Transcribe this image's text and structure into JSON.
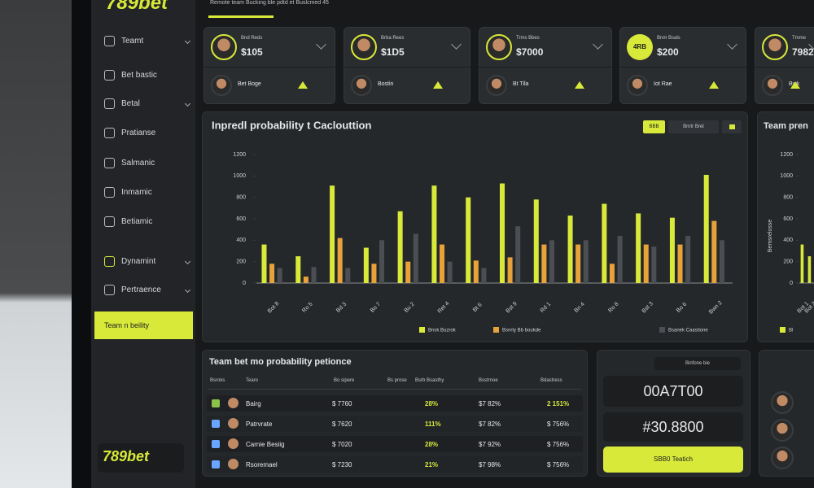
{
  "brand": "789bet",
  "breadcrumb": "Remote team Bucking ble pdtd et Buslcmed 45",
  "sidebar": {
    "items": [
      "Teamt",
      "Bet bastic",
      "Betal",
      "Pratianse",
      "Salmanic",
      "Inmamic",
      "Betiamic",
      "Dynamint",
      "Pertraence",
      "Team n beility"
    ],
    "footer_brand": "789bet"
  },
  "cards": [
    {
      "name": "Bnd Reds",
      "value": "$105",
      "sub_name": "Bet Boge"
    },
    {
      "name": "Brba Rees",
      "value": "$1D5",
      "sub_name": "Bostin"
    },
    {
      "name": "Trms Bbes",
      "value": "$7000",
      "sub_name": "Bt Tila"
    },
    {
      "name": "Bnm Bsals",
      "value": "$200",
      "avatar_text": "4RB",
      "sub_name": "Iot Rae"
    },
    {
      "name": "Tmme",
      "value": "7982",
      "sub_name": "Bwk"
    }
  ],
  "chart_panel": {
    "buttons": [
      "BBB",
      "Bnrtr Bret"
    ]
  },
  "chart_data": [
    {
      "type": "bar",
      "title": "Inpredl probability t Caclouttion",
      "categories": [
        "Bot 8",
        "Ro 5",
        "Bd 3",
        "Bo 7",
        "Bu 2",
        "Ret 4",
        "Bt 6",
        "Bst 9",
        "Rd 1",
        "Bn 4",
        "Ro 8",
        "Bst 3",
        "Bo 6",
        "Bwn 2"
      ],
      "series": [
        {
          "name": "Bnsk Buzrok",
          "color": "#d8e93a",
          "values": [
            360,
            250,
            910,
            330,
            670,
            910,
            800,
            930,
            780,
            630,
            740,
            650,
            610,
            1010
          ]
        },
        {
          "name": "Bsnrty Bb boukde",
          "color": "#e8a23a",
          "values": [
            180,
            60,
            420,
            180,
            200,
            360,
            210,
            240,
            360,
            360,
            180,
            360,
            360,
            580
          ]
        },
        {
          "name": "Bsanek Caastione",
          "color": "#4b4f53",
          "values": [
            140,
            150,
            140,
            400,
            460,
            200,
            140,
            530,
            400,
            400,
            440,
            340,
            440,
            400
          ]
        }
      ],
      "ylim": [
        0,
        1200
      ],
      "yticks": [
        0,
        200,
        400,
        600,
        800,
        1000,
        1200
      ],
      "grid": false
    },
    {
      "type": "bar",
      "title": "Team pren",
      "y_label": "Bemsrelosse",
      "categories": [
        "Bot 1",
        "Bot 2"
      ],
      "series": [
        {
          "name": "Bl",
          "color": "#d8e93a",
          "values": [
            360,
            250
          ]
        }
      ],
      "ylim": [
        0,
        1200
      ],
      "yticks": [
        0,
        200,
        400,
        600,
        800,
        1000,
        1200
      ],
      "grid": false
    }
  ],
  "table": {
    "title": "Team bet mo probability petionce",
    "headers": [
      "Bsroks",
      "Tearo",
      "Bo sipere",
      "Bs prose",
      "Bsrb Bsasthy",
      "Bsstrnoe",
      "Bdastress"
    ],
    "rows": [
      [
        "Bairg",
        "$ 7760",
        "28%",
        "$7 82%",
        "2 151%"
      ],
      [
        "Patrvrate",
        "$ 7620",
        "111%",
        "$7 82%",
        "$ 756%"
      ],
      [
        "Carnie Besiig",
        "$ 7020",
        "28%",
        "$7 92%",
        "$ 756%"
      ],
      [
        "Rsoremael",
        "$ 7230",
        "21%",
        "$7 98%",
        "$ 756%"
      ]
    ]
  },
  "summary": {
    "tab": "Binfone bie",
    "primary": "00A7T00",
    "secondary": "#30.8800",
    "button": "SBB0 Teatich"
  }
}
